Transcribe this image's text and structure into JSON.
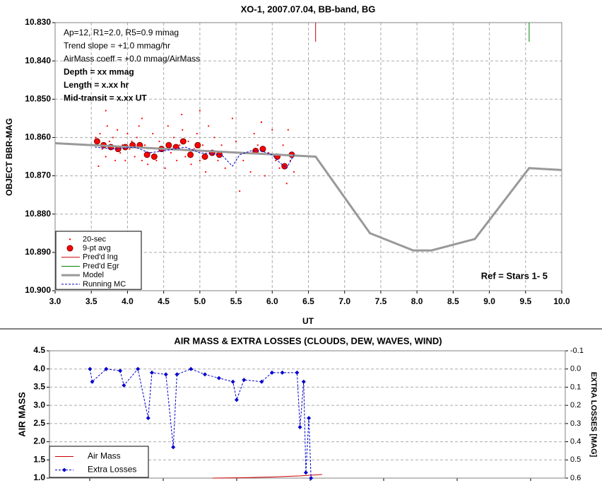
{
  "chart_data": [
    {
      "type": "scatter",
      "title": "XO-1, 2007.07.04, BB-band, BG",
      "xlabel": "UT",
      "ylabel": "OBJECT BBR-MAG",
      "xlim": [
        3,
        10
      ],
      "xticks": [
        {
          "value": 3,
          "label": "3.0"
        },
        3.5,
        {
          "value": 4,
          "label": "4.0"
        },
        4.5,
        {
          "value": 5,
          "label": "5.0"
        },
        5.5,
        {
          "value": 6,
          "label": "6.0"
        },
        6.5,
        {
          "value": 7,
          "label": "7.0"
        },
        7.5,
        {
          "value": 8,
          "label": "8.0"
        },
        8.5,
        {
          "value": 9,
          "label": "9.0"
        },
        9.5,
        {
          "value": 10,
          "label": "10.0"
        }
      ],
      "ylim": [
        10.9,
        10.83
      ],
      "yticks": [
        {
          "value": 10.83,
          "label": "10.830"
        },
        {
          "value": 10.84,
          "label": "10.840"
        },
        {
          "value": 10.85,
          "label": "10.850"
        },
        {
          "value": 10.86,
          "label": "10.860"
        },
        {
          "value": 10.87,
          "label": "10.870"
        },
        {
          "value": 10.88,
          "label": "10.880"
        },
        {
          "value": 10.89,
          "label": "10.890"
        },
        {
          "value": 10.9,
          "label": "10.900"
        }
      ],
      "grid": true,
      "annotations": [
        {
          "text": "Ap=12, R1=2.0, R5=0.9 mmag",
          "color": "#000000"
        },
        {
          "text": "Trend slope = +1.0 mmag/hr",
          "color": "#000000"
        },
        {
          "text": "AirMass coeff = +0.0 mmag/AirMass",
          "color": "#000000"
        },
        {
          "text": "Depth = xx mmag",
          "color": "#0000cc"
        },
        {
          "text": "Length = x.xx hr",
          "color": "#0000cc"
        },
        {
          "text": "Mid-transit = x.xx UT",
          "color": "#0000cc"
        }
      ],
      "ref_label": {
        "text": "Ref = Stars 1- 5",
        "color": "#0000cc"
      },
      "series": [
        {
          "name": "20-sec",
          "color": "#ff0000",
          "style": "dots",
          "x": [
            3.56,
            3.6,
            3.62,
            3.65,
            3.7,
            3.72,
            3.75,
            3.8,
            3.83,
            3.86,
            3.9,
            3.93,
            3.97,
            4.0,
            4.03,
            4.06,
            4.1,
            4.13,
            4.16,
            4.2,
            4.24,
            4.28,
            4.31,
            4.35,
            4.4,
            4.44,
            4.48,
            4.52,
            4.56,
            4.6,
            4.64,
            4.68,
            4.72,
            4.76,
            4.8,
            4.84,
            4.88,
            4.92,
            4.96,
            5.0,
            5.04,
            5.08,
            5.12,
            5.16,
            5.2,
            5.25,
            5.3,
            5.35,
            5.5,
            5.55,
            5.6,
            5.7,
            5.75,
            5.8,
            5.85,
            5.9,
            5.95,
            6.0,
            6.05,
            6.1,
            6.15,
            6.2,
            6.25,
            6.3,
            3.7,
            4.2,
            4.75,
            5.0,
            5.45,
            5.85,
            6.22
          ],
          "values": [
            10.86,
            10.8675,
            10.859,
            10.863,
            10.865,
            10.857,
            10.861,
            10.86,
            10.866,
            10.858,
            10.864,
            10.862,
            10.866,
            10.859,
            10.863,
            10.861,
            10.865,
            10.86,
            10.857,
            10.866,
            10.862,
            10.867,
            10.864,
            10.859,
            10.866,
            10.861,
            10.863,
            10.868,
            10.857,
            10.864,
            10.86,
            10.866,
            10.862,
            10.858,
            10.865,
            10.861,
            10.867,
            10.863,
            10.859,
            10.866,
            10.862,
            10.869,
            10.857,
            10.864,
            10.86,
            10.866,
            10.862,
            10.868,
            10.861,
            10.874,
            10.866,
            10.869,
            10.859,
            10.862,
            10.856,
            10.87,
            10.864,
            10.858,
            10.866,
            10.868,
            10.862,
            10.872,
            10.866,
            10.869,
            10.853,
            10.855,
            10.854,
            10.853,
            10.855,
            10.856,
            10.858
          ]
        },
        {
          "name": "9-pt avg",
          "color": "#ff0000",
          "style": "circles",
          "x": [
            3.58,
            3.67,
            3.77,
            3.87,
            3.97,
            4.07,
            4.17,
            4.27,
            4.37,
            4.47,
            4.57,
            4.67,
            4.77,
            4.87,
            4.97,
            5.07,
            5.17,
            5.27,
            5.77,
            5.87,
            6.07,
            6.17,
            6.27
          ],
          "values": [
            10.861,
            10.862,
            10.8625,
            10.863,
            10.8625,
            10.862,
            10.862,
            10.8645,
            10.865,
            10.863,
            10.862,
            10.8625,
            10.861,
            10.8645,
            10.862,
            10.865,
            10.864,
            10.8645,
            10.8635,
            10.863,
            10.865,
            10.8675,
            10.8645
          ]
        },
        {
          "name": "Pred'd Ing",
          "color": "#cc0000",
          "style": "line",
          "x": [
            6.6,
            6.6
          ],
          "values": [
            10.83,
            10.835
          ]
        },
        {
          "name": "Pred'd Egr",
          "color": "#008000",
          "style": "line",
          "x": [
            9.55,
            9.55
          ],
          "values": [
            10.83,
            10.835
          ]
        },
        {
          "name": "Model",
          "color": "#999999",
          "style": "thick",
          "x": [
            3.0,
            6.6,
            7.35,
            7.95,
            8.2,
            8.8,
            9.55,
            10.0
          ],
          "values": [
            10.8615,
            10.865,
            10.885,
            10.8895,
            10.8895,
            10.8865,
            10.868,
            10.8685
          ]
        },
        {
          "name": "Running MC",
          "color": "#0000cc",
          "style": "dashed",
          "x": [
            3.55,
            3.8,
            4.1,
            4.3,
            4.5,
            4.8,
            5.0,
            5.3,
            5.45,
            5.55,
            5.7,
            5.85,
            6.0,
            6.1,
            6.2,
            6.3
          ],
          "values": [
            10.8625,
            10.863,
            10.8625,
            10.864,
            10.8635,
            10.8625,
            10.864,
            10.8645,
            10.8675,
            10.8645,
            10.8635,
            10.8635,
            10.8645,
            10.8665,
            10.868,
            10.8645
          ]
        }
      ]
    },
    {
      "type": "line",
      "title": "AIR MASS & EXTRA LOSSES (CLOUDS, DEW, WAVES, WIND)",
      "ylabel": "AIR MASS",
      "y2label": "EXTRA LOSSES [MAG]",
      "xlim": [
        3,
        10
      ],
      "ylim": [
        1.0,
        4.5
      ],
      "yticks": [
        {
          "value": 1.0,
          "label": "1.0"
        },
        1.5,
        {
          "value": 2.0,
          "label": "2.0"
        },
        2.5,
        {
          "value": 3.0,
          "label": "3.0"
        },
        3.5,
        {
          "value": 4.0,
          "label": "4.0"
        },
        4.5
      ],
      "y2lim": [
        0.6,
        -0.1
      ],
      "y2ticks": [
        -0.1,
        {
          "value": 0.0,
          "label": "0.0"
        },
        0.1,
        0.2,
        0.3,
        0.4,
        0.5,
        0.6
      ],
      "grid": true,
      "series": [
        {
          "name": "Air Mass",
          "color": "#cc0000",
          "style": "line",
          "x": [
            5.21,
            5.6,
            6.0,
            6.4,
            6.7
          ],
          "values": [
            1.0,
            1.01,
            1.03,
            1.06,
            1.1
          ]
        },
        {
          "name": "Extra Losses",
          "color": "#0000cc",
          "style": "dashed-markers",
          "axis": "y2",
          "x": [
            3.55,
            3.58,
            3.77,
            3.96,
            4.01,
            4.2,
            4.34,
            4.39,
            4.58,
            4.68,
            4.73,
            4.92,
            5.11,
            5.3,
            5.49,
            5.54,
            5.64,
            5.88,
            6.02,
            6.16,
            6.36,
            6.4,
            6.45,
            6.48,
            6.52,
            6.55
          ],
          "values": [
            0.0,
            0.07,
            0.0,
            0.01,
            0.09,
            0.0,
            0.27,
            0.02,
            0.03,
            0.43,
            0.03,
            0.0,
            0.03,
            0.05,
            0.07,
            0.17,
            0.06,
            0.07,
            0.02,
            0.02,
            0.02,
            0.32,
            0.07,
            0.57,
            0.27,
            0.6
          ]
        }
      ]
    }
  ]
}
